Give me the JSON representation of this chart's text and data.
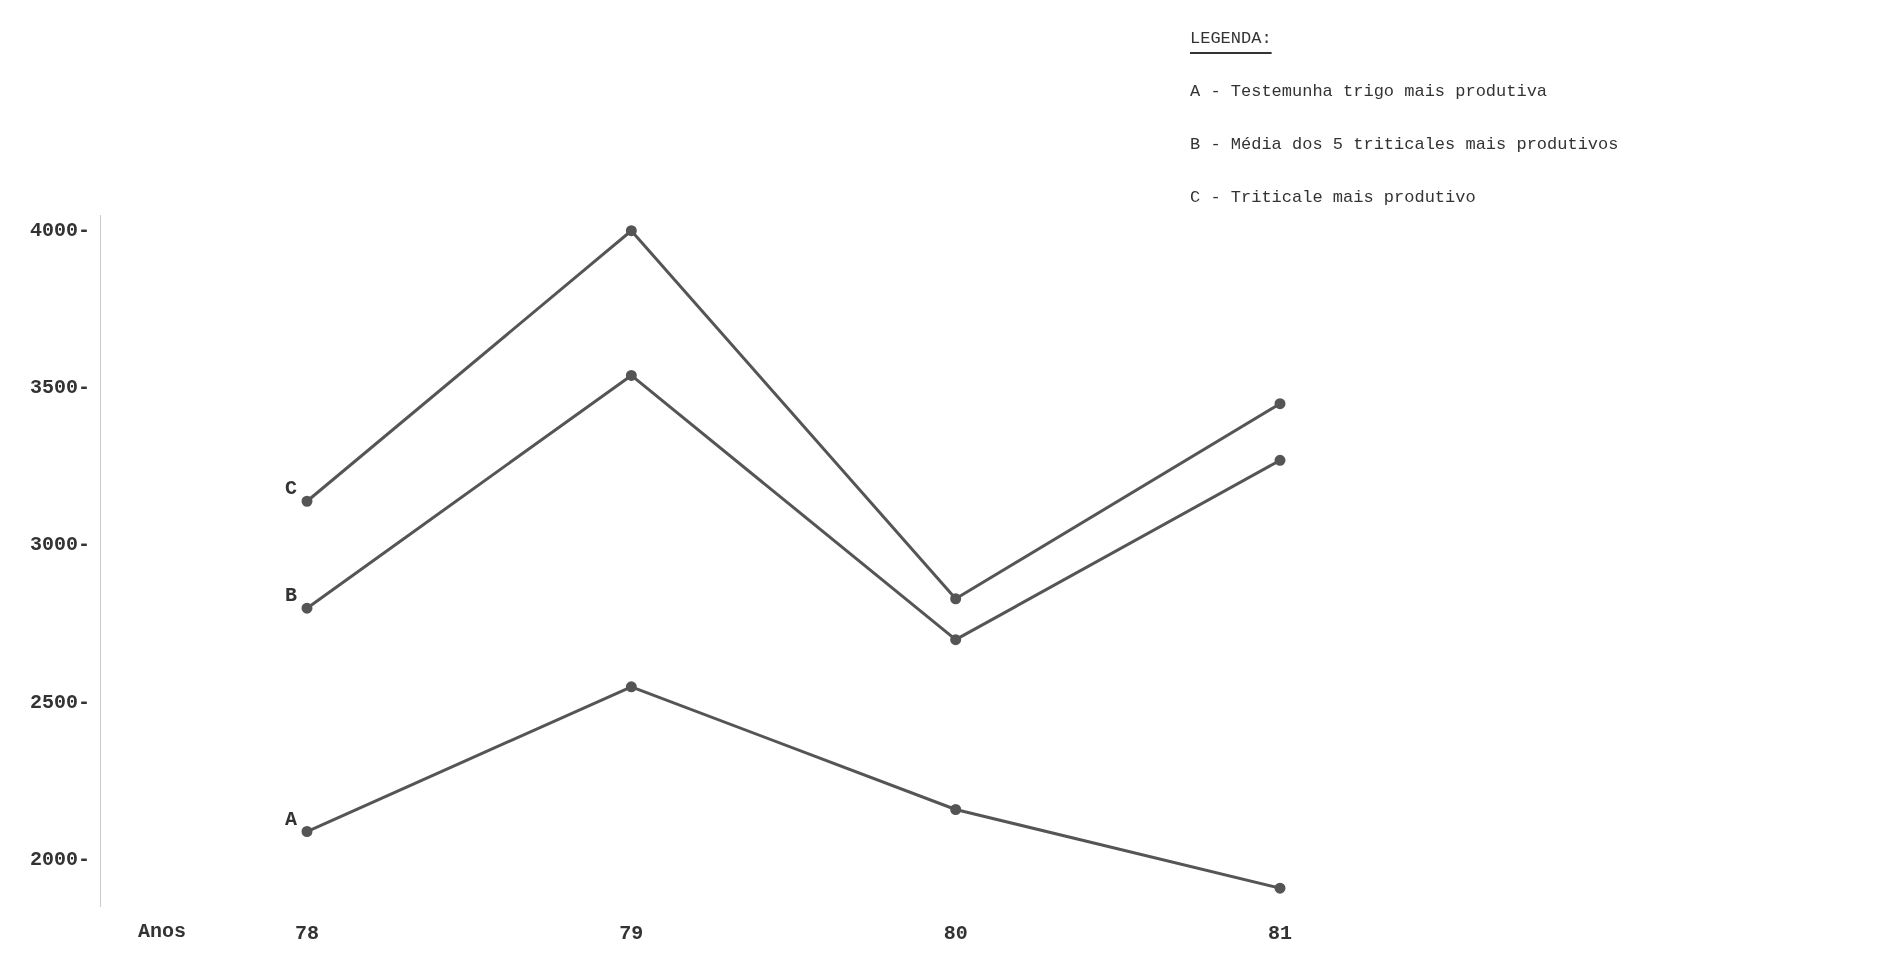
{
  "chart_data": {
    "type": "line",
    "xlabel": "Anos",
    "categories": [
      "78",
      "79",
      "80",
      "81"
    ],
    "series": [
      {
        "name": "A",
        "color": "#555555",
        "values": [
          2090,
          2550,
          2160,
          1910
        ]
      },
      {
        "name": "B",
        "color": "#555555",
        "values": [
          2800,
          3540,
          2700,
          3270
        ]
      },
      {
        "name": "C",
        "color": "#555555",
        "values": [
          3140,
          4000,
          2830,
          3450
        ]
      }
    ],
    "ylim": [
      1850,
      4050
    ],
    "yticks": [
      {
        "value": 2000,
        "label": "2000-"
      },
      {
        "value": 2500,
        "label": "2500-"
      },
      {
        "value": 3000,
        "label": "3000-"
      },
      {
        "value": 3500,
        "label": "3500-"
      },
      {
        "value": 4000,
        "label": "4000-"
      }
    ],
    "grid": false,
    "legend": false,
    "marker": "circle",
    "line_style": "solid",
    "annotations": [
      "LEGENDA:",
      "A - Testemunha trigo mais produtiva",
      "B - Média dos 5 triticales mais produtivos",
      "C - Triticale mais produtivo"
    ]
  }
}
